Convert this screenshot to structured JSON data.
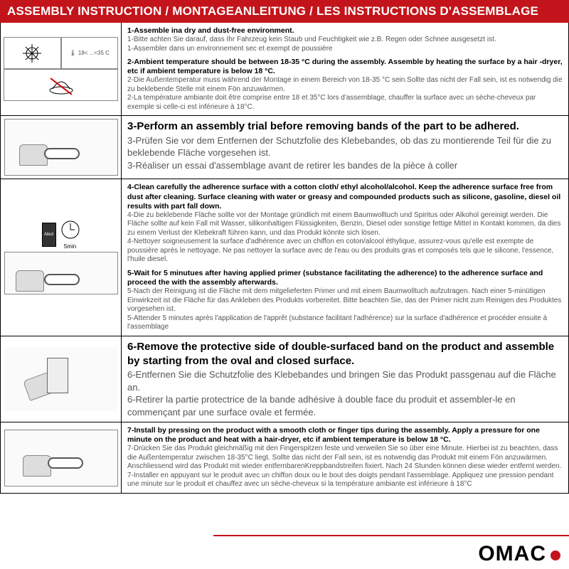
{
  "colors": {
    "accent": "#c4141b",
    "text": "#000000",
    "muted": "#555555",
    "border": "#000000",
    "bg": "#ffffff"
  },
  "header": {
    "title": "ASSEMBLY INSTRUCTION / MONTAGEANLEITUNG / LES INSTRUCTIONS D'ASSEMBLAGE"
  },
  "steps": [
    {
      "img_hint": "sun / thermometer 18<...<35 C / no-rain icon",
      "temp_label": "18< ...<35 C",
      "lines": [
        {
          "cls": "bold-sm",
          "t": "1-Assemble ina dry and dust-free environment."
        },
        {
          "cls": "",
          "t": "1-Bitte achten Sie darauf, dass Ihr Fahrzeug kein Staub und Feuchtigkeit wie z.B. Regen oder Schnee ausgesetzt ist."
        },
        {
          "cls": "",
          "t": "1-Assembler dans un environnement sec et exempt de poussière"
        },
        {
          "cls": "sp",
          "t": ""
        },
        {
          "cls": "bold-sm",
          "t": "2-Ambient temperature should be between 18-35 °C  during the assembly. Assemble by heating the surface by a hair -dryer, etc if ambient temperature is below 18 °C."
        },
        {
          "cls": "",
          "t": "2-Die Außentemperatur muss während der Montage in einem Bereich von 18-35 °C  sein.Sollte das nicht der Fall sein, ist es notwendig die zu beklebende Stelle mit einem Fön anzuwärmen."
        },
        {
          "cls": "",
          "t": "2-La température ambiante doit être comprise entre 18 et 35°C lors d'assemblage, chauffer la surface avec un sèche-cheveux par exemple si celle-ci est inférieure à 18°C."
        }
      ]
    },
    {
      "big": true,
      "img_hint": "hand holding trim against car panel",
      "lines": [
        {
          "cls": "bold-lg",
          "t": "3-Perform an assembly trial before removing bands of the part to be adhered."
        },
        {
          "cls": "",
          "t": "3-Prüfen Sie vor dem Entfernen der Schutzfolie des Klebebandes, ob das zu montierende Teil für die zu beklebende Fläche vorgesehen ist."
        },
        {
          "cls": "",
          "t": "3-Réaliser un essai d'assemblage avant de retirer les bandes de la pièce à coller"
        }
      ]
    },
    {
      "img_hint": "alcohol bottle + 5min clock / hand wiping panel",
      "clock_label": "5min",
      "bottle_label": "Alkol",
      "lines": [
        {
          "cls": "bold-sm",
          "t": "4-Clean carefully the adherence surface with a cotton cloth/ ethyl alcohol/alcohol. Keep the adherence surface free from dust after cleaning. Surface cleaning with water or greasy and compounded products such as silicone, gasoline, diesel oil results with part fall down."
        },
        {
          "cls": "",
          "t": "4-Die zu beklebende Fläche sollte vor der Montage gründlich mit einem Baumwolltuch und Spiritus oder Alkohol gereinigt werden. Die Fläche sollte auf kein Fall mit Wasser, silikonhaltigen Flüssigkeiten, Benzin, Diesel oder sonstige fettige Mittel in Kontakt kommen, da dies zu einem Verlust der Klebekraft führen kann, und das Produkt könnte sich lösen."
        },
        {
          "cls": "",
          "t": "4-Nettoyer soigneusement la surface d'adhérence avec un chiffon en coton/alcool éthylique, assurez-vous qu'elle est exempte de poussière après le nettoyage. Ne pas nettoyer la surface avec de l'eau ou des produits gras et composés tels que le silicone, l'essence, l'huile diesel."
        },
        {
          "cls": "sp",
          "t": ""
        },
        {
          "cls": "bold-sm",
          "t": "5-Wait for 5 minutues after having applied primer (substance facilitating the adherence) to the adherence surface and proceed the with the assembly afterwards."
        },
        {
          "cls": "",
          "t": "5-Nach der Reinigung ist die Fläche mit dem mitgelieferten Primer und mit einem Baumwolltuch aufzutragen. Nach einer 5-minütigen Einwirkzeit ist die Fläche für das Ankleben des Produkts vorbereitet. Bitte beachten Sie, das der Primer nicht zum Reinigen des Produktes vorgesehen ist."
        },
        {
          "cls": "",
          "t": "5-Attender 5 minutes après l'application de l'apprêt (substance facilitant l'adhérence) sur la surface d'adhérence et procéder ensuite à l'assemblage"
        }
      ]
    },
    {
      "big": true,
      "img_hint": "hand peeling tape from trim",
      "lines": [
        {
          "cls": "bold-lg",
          "t": "6-Remove the protective side of double-surfaced band on the product and assemble by starting from the oval and closed surface."
        },
        {
          "cls": "",
          "t": "6-Entfernen Sie die Schutzfolie des Klebebandes und bringen Sie das Produkt passgenau auf die Fläche an."
        },
        {
          "cls": "",
          "t": "6-Retirer la partie protectrice de la bande adhésive à double face du produit et assembler-le en commençant par une surface ovale et fermée."
        }
      ]
    },
    {
      "img_hint": "hand pressing trim on car panel",
      "lines": [
        {
          "cls": "bold-sm",
          "t": "7-Install by pressing on the product with a smooth cloth or finger tips during the assembly. Apply a pressure for one minute on the product and heat with a hair-dryer, etc if ambient temperature is below 18 °C."
        },
        {
          "cls": "",
          "t": "7-Drücken Sie das Produkt gleichmäßig mit den Fingerspitzen feste und verweilen Sie so über eine Minute. Hierbei ist zu beachten, dass die Außentemperatur zwischen 18-35°C liegt. Sollte das nicht der Fall sein, ist es notwendig das Produkt mit einem Fön anzuwärmen. Anschliessend wird das Produkt mit wieder entfernbarenKreppbandstreifen fixiert. Nach 24 Stunden können diese wieder entfernt werden."
        },
        {
          "cls": "",
          "t": "7-Installer en appuyant sur le produit avec un chiffon doux ou le bout des doigts pendant l'assemblage. Appliquez une pression pendant une minute sur le produit et chauffez avec un sèche-cheveux si la température ambiante est inférieure à 18°C"
        }
      ]
    }
  ],
  "footer": {
    "brand": "OMAC"
  }
}
